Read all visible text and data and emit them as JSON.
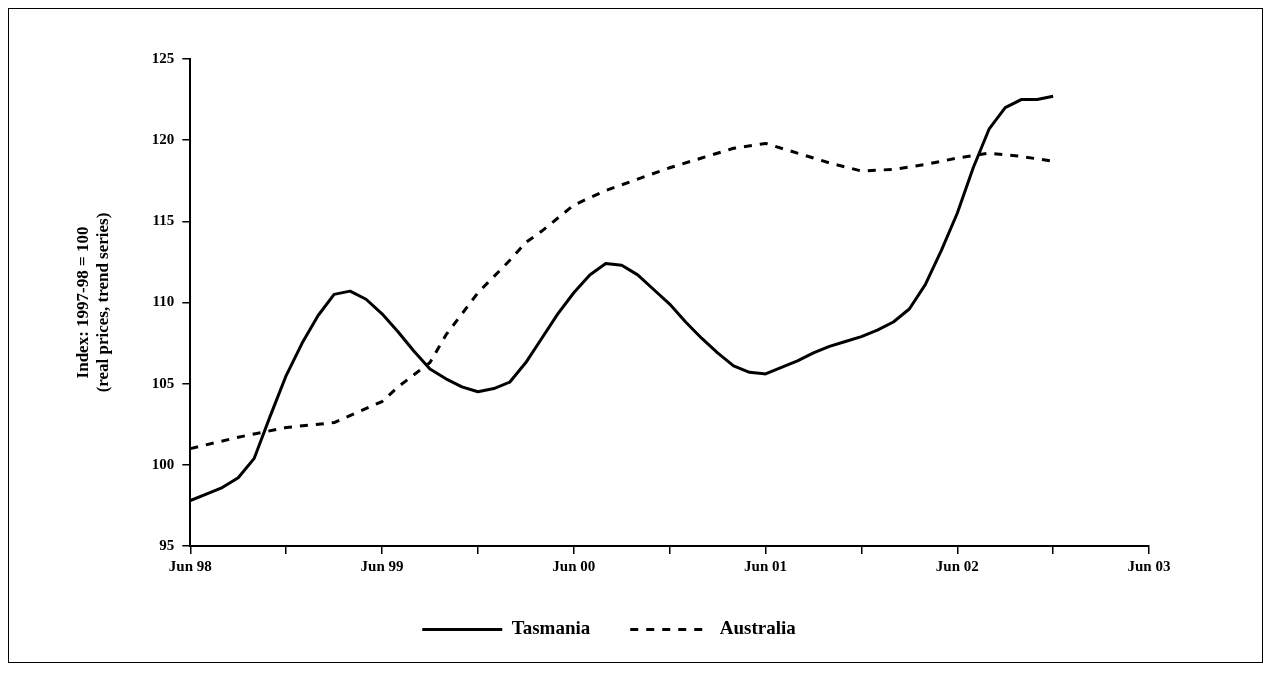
{
  "chart_data": {
    "type": "line",
    "ylabel": "Index: 1997-98 = 100\n(real prices, trend series)",
    "xlim": [
      "1998-06",
      "2003-06"
    ],
    "xticks": [
      {
        "value": "1998-06",
        "label": "Jun 98"
      },
      {
        "value": "1998-12",
        "label": null
      },
      {
        "value": "1999-06",
        "label": "Jun 99"
      },
      {
        "value": "1999-12",
        "label": null
      },
      {
        "value": "2000-06",
        "label": "Jun 00"
      },
      {
        "value": "2000-12",
        "label": null
      },
      {
        "value": "2001-06",
        "label": "Jun 01"
      },
      {
        "value": "2001-12",
        "label": null
      },
      {
        "value": "2002-06",
        "label": "Jun 02"
      },
      {
        "value": "2002-12",
        "label": null
      },
      {
        "value": "2003-06",
        "label": "Jun 03"
      }
    ],
    "ylim": [
      95,
      125
    ],
    "yticks": [
      95,
      100,
      105,
      110,
      115,
      120,
      125
    ],
    "grid": false,
    "legend": "bottom",
    "marker": "none",
    "series": [
      {
        "name": "Tasmania",
        "color": "#000000",
        "line_style": "solid",
        "x": [
          "1998-06",
          "1998-07",
          "1998-08",
          "1998-09",
          "1998-10",
          "1998-11",
          "1998-12",
          "1999-01",
          "1999-02",
          "1999-03",
          "1999-04",
          "1999-05",
          "1999-06",
          "1999-07",
          "1999-08",
          "1999-09",
          "1999-10",
          "1999-11",
          "1999-12",
          "2000-01",
          "2000-02",
          "2000-03",
          "2000-04",
          "2000-05",
          "2000-06",
          "2000-07",
          "2000-08",
          "2000-09",
          "2000-10",
          "2000-11",
          "2000-12",
          "2001-01",
          "2001-02",
          "2001-03",
          "2001-04",
          "2001-05",
          "2001-06",
          "2001-07",
          "2001-08",
          "2001-09",
          "2001-10",
          "2001-11",
          "2001-12",
          "2002-01",
          "2002-02",
          "2002-03",
          "2002-04",
          "2002-05",
          "2002-06",
          "2002-07",
          "2002-08",
          "2002-09",
          "2002-10",
          "2002-11",
          "2002-12"
        ],
        "values": [
          97.8,
          98.2,
          98.6,
          99.2,
          100.4,
          103.0,
          105.5,
          107.5,
          109.2,
          110.5,
          110.7,
          110.2,
          109.3,
          108.2,
          107.0,
          105.9,
          105.3,
          104.8,
          104.5,
          104.7,
          105.1,
          106.3,
          107.8,
          109.3,
          110.6,
          111.7,
          112.4,
          112.3,
          111.7,
          110.8,
          109.9,
          108.8,
          107.8,
          106.9,
          106.1,
          105.7,
          105.6,
          106.0,
          106.4,
          106.9,
          107.3,
          107.6,
          107.9,
          108.3,
          108.8,
          109.6,
          111.1,
          113.2,
          115.5,
          118.3,
          120.7,
          122.0,
          122.5,
          122.5,
          122.7
        ]
      },
      {
        "name": "Australia",
        "color": "#000000",
        "line_style": "dashed",
        "x": [
          "1998-06",
          "1998-09",
          "1998-12",
          "1999-03",
          "1999-06",
          "1999-07",
          "1999-09",
          "1999-10",
          "1999-12",
          "2000-02",
          "2000-03",
          "2000-04",
          "2000-06",
          "2000-08",
          "2000-10",
          "2000-12",
          "2001-02",
          "2001-04",
          "2001-06",
          "2001-08",
          "2001-10",
          "2001-12",
          "2002-02",
          "2002-04",
          "2002-06",
          "2002-08",
          "2002-10",
          "2002-12"
        ],
        "values": [
          101.0,
          101.7,
          102.3,
          102.6,
          103.9,
          104.8,
          106.3,
          108.0,
          110.6,
          112.6,
          113.7,
          114.4,
          116.0,
          116.9,
          117.6,
          118.3,
          118.9,
          119.5,
          119.8,
          119.2,
          118.6,
          118.1,
          118.2,
          118.5,
          118.9,
          119.2,
          119.0,
          118.7
        ]
      }
    ]
  }
}
